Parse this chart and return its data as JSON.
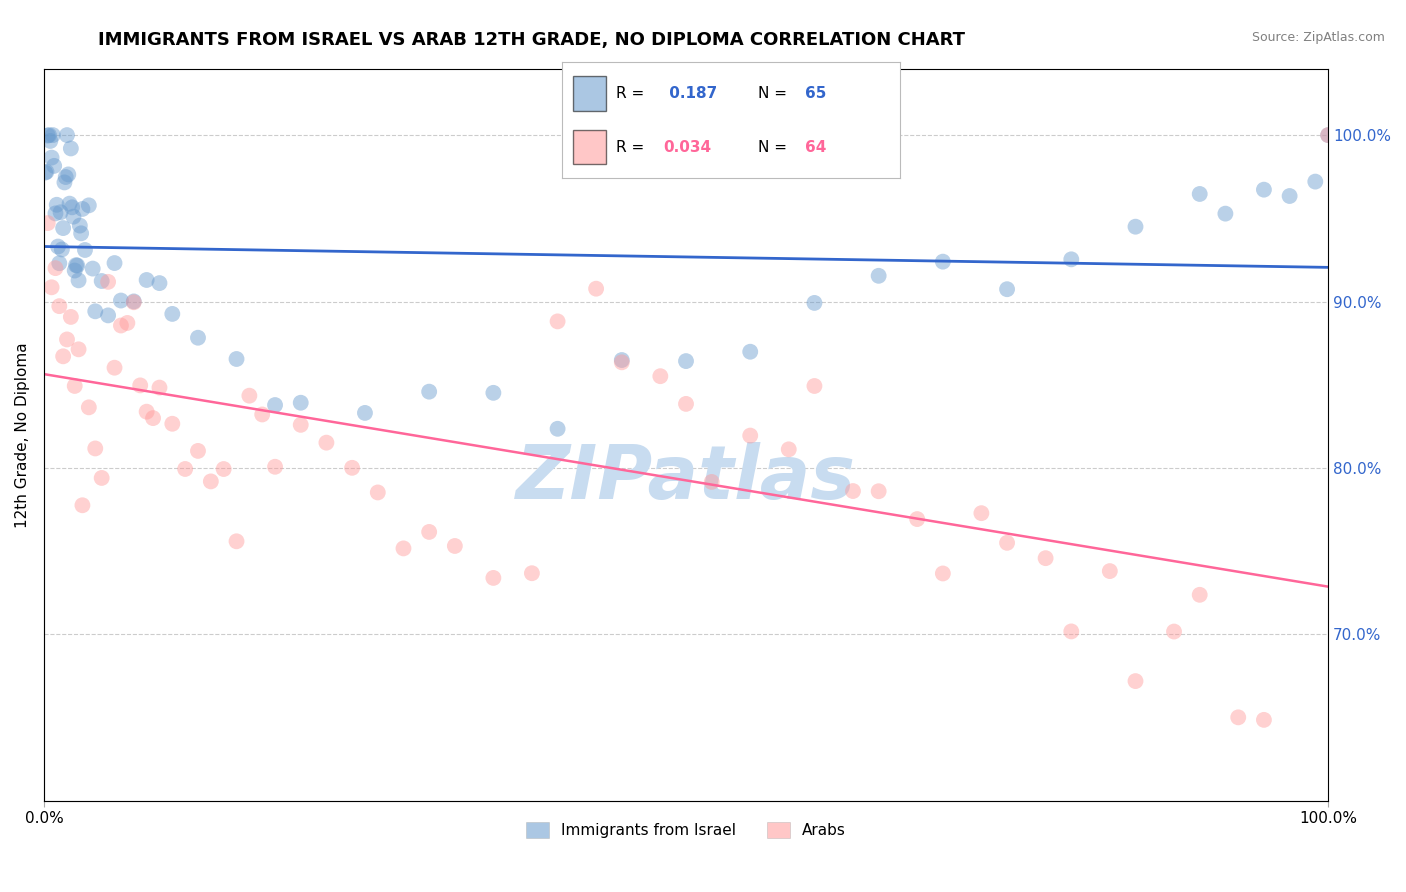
{
  "title": "IMMIGRANTS FROM ISRAEL VS ARAB 12TH GRADE, NO DIPLOMA CORRELATION CHART",
  "source": "Source: ZipAtlas.com",
  "ylabel": "12th Grade, No Diploma",
  "legend_label1": "Immigrants from Israel",
  "legend_label2": "Arabs",
  "legend_R1": "R =  0.187",
  "legend_N1": "N = 65",
  "legend_R2": "R = 0.034",
  "legend_N2": "N = 64",
  "blue_color": "#6699CC",
  "pink_color": "#FF9999",
  "blue_line_color": "#3366CC",
  "pink_line_color": "#FF6699",
  "watermark": "ZIPatlas",
  "watermark_color": "#C8DCF0",
  "background_color": "#FFFFFF",
  "grid_color": "#CCCCCC",
  "title_fontsize": 13,
  "axis_label_fontsize": 11,
  "israel_x": [
    0.1,
    0.2,
    0.3,
    0.4,
    0.5,
    0.6,
    0.7,
    0.8,
    0.9,
    1.0,
    1.1,
    1.2,
    1.3,
    1.4,
    1.5,
    1.6,
    1.7,
    1.8,
    1.9,
    2.0,
    2.1,
    2.2,
    2.3,
    2.4,
    2.5,
    2.6,
    2.7,
    2.8,
    2.9,
    3.0,
    3.2,
    3.5,
    3.8,
    4.0,
    4.5,
    5.0,
    5.5,
    6.0,
    7.0,
    8.0,
    9.0,
    10.0,
    12.0,
    15.0,
    18.0,
    20.0,
    25.0,
    30.0,
    35.0,
    40.0,
    45.0,
    50.0,
    55.0,
    60.0,
    65.0,
    70.0,
    75.0,
    80.0,
    85.0,
    90.0,
    92.0,
    95.0,
    97.0,
    99.0,
    100.0
  ],
  "israel_y": [
    97.0,
    98.0,
    99.0,
    100.0,
    100.0,
    99.0,
    98.0,
    97.0,
    96.0,
    95.0,
    94.0,
    93.0,
    95.0,
    96.0,
    97.0,
    98.0,
    99.0,
    100.0,
    99.0,
    98.0,
    97.0,
    96.0,
    95.0,
    94.0,
    93.0,
    92.0,
    93.0,
    94.0,
    95.0,
    96.0,
    94.0,
    93.0,
    92.0,
    91.0,
    90.0,
    91.0,
    92.0,
    93.0,
    92.0,
    91.0,
    90.0,
    89.0,
    88.0,
    87.0,
    86.0,
    85.0,
    84.0,
    83.0,
    84.0,
    85.0,
    86.0,
    87.0,
    88.0,
    89.0,
    90.0,
    91.0,
    92.0,
    93.0,
    94.0,
    95.0,
    96.0,
    97.0,
    98.0,
    99.0,
    100.0
  ],
  "arab_x": [
    0.3,
    0.6,
    0.9,
    1.2,
    1.5,
    1.8,
    2.1,
    2.4,
    2.7,
    3.0,
    3.5,
    4.0,
    4.5,
    5.0,
    5.5,
    6.0,
    6.5,
    7.0,
    7.5,
    8.0,
    8.5,
    9.0,
    10.0,
    11.0,
    12.0,
    13.0,
    14.0,
    15.0,
    16.0,
    17.0,
    18.0,
    20.0,
    22.0,
    24.0,
    26.0,
    28.0,
    30.0,
    32.0,
    35.0,
    38.0,
    40.0,
    43.0,
    45.0,
    48.0,
    50.0,
    52.0,
    55.0,
    58.0,
    60.0,
    63.0,
    65.0,
    68.0,
    70.0,
    73.0,
    75.0,
    78.0,
    80.0,
    83.0,
    85.0,
    88.0,
    90.0,
    93.0,
    95.0,
    100.0
  ],
  "arab_y": [
    92.0,
    91.0,
    90.0,
    89.0,
    88.0,
    87.0,
    86.0,
    85.0,
    84.0,
    83.0,
    82.0,
    81.0,
    80.0,
    91.0,
    90.0,
    89.0,
    88.0,
    87.0,
    86.0,
    85.0,
    84.0,
    83.0,
    82.0,
    81.0,
    80.0,
    79.0,
    78.0,
    77.0,
    85.0,
    84.0,
    83.0,
    82.0,
    81.0,
    80.0,
    79.0,
    78.0,
    77.0,
    76.0,
    75.0,
    74.0,
    88.0,
    87.0,
    86.0,
    85.0,
    84.0,
    83.0,
    82.0,
    81.0,
    80.0,
    79.0,
    78.0,
    77.0,
    76.0,
    75.0,
    74.0,
    73.0,
    72.0,
    71.0,
    70.0,
    69.0,
    68.0,
    67.0,
    66.0,
    100.0
  ]
}
